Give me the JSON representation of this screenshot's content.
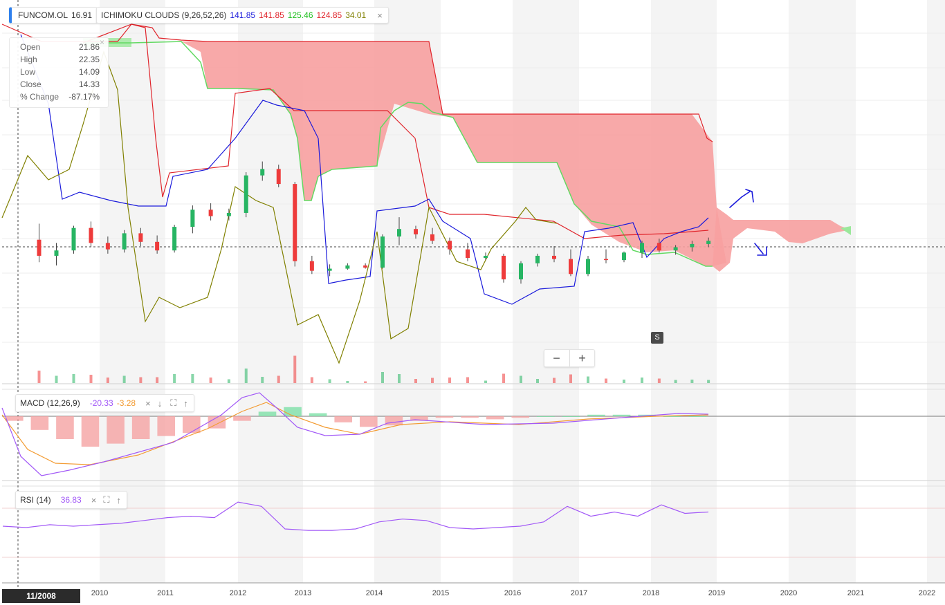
{
  "symbol": {
    "ticker": "FUNCOM.OL",
    "price": "16.91"
  },
  "ichimoku": {
    "label": "ICHIMOKU CLOUDS (9,26,52,26)",
    "values": [
      "141.85",
      "141.85",
      "125.46",
      "124.85",
      "34.01"
    ],
    "colors": [
      "#1a1adb",
      "#e0242b",
      "#22c022",
      "#e0242b",
      "#808000"
    ],
    "close_icon": "close-icon"
  },
  "ohlc": {
    "rows": [
      {
        "label": "Open",
        "value": "21.86"
      },
      {
        "label": "High",
        "value": "22.35"
      },
      {
        "label": "Low",
        "value": "14.09"
      },
      {
        "label": "Close",
        "value": "14.33"
      },
      {
        "label": "% Change",
        "value": "-87.17%"
      }
    ],
    "close_symbol": "×"
  },
  "macd": {
    "label": "MACD (12,26,9)",
    "value1": "-20.33",
    "value2": "-3.28",
    "value1_color": "#a259f7",
    "value2_color": "#f39c33"
  },
  "rsi": {
    "label": "RSI (14)",
    "value": "36.83",
    "value_color": "#a259f7"
  },
  "icons": {
    "close": "×",
    "down": "↓",
    "expand": "⛶",
    "up": "↑"
  },
  "zoom": {
    "out": "−",
    "in": "+"
  },
  "marker": "S",
  "cursor_date": "11/2008",
  "colors": {
    "up": "#27b563",
    "down": "#ee3b3b",
    "cloud_red": "#f7a0a0",
    "cloud_green": "#b8f2b8",
    "tenkan": "#1a1adb",
    "kijun": "#e0242b",
    "chikou": "#808000",
    "macd_line": "#a259f7",
    "signal_line": "#f39c33",
    "rsi_line": "#a259f7"
  },
  "chart_data": {
    "type": "candlestick",
    "x_axis": {
      "ticks": [
        "2010",
        "2011",
        "2012",
        "2013",
        "2014",
        "2015",
        "2016",
        "2017",
        "2018",
        "2019",
        "2020",
        "2021",
        "2022"
      ]
    },
    "price_series": {
      "start": "2009.0",
      "step": "quarter",
      "candles": [
        {
          "o": 17.5,
          "h": 19.0,
          "l": 15.4,
          "c": 16.0
        },
        {
          "o": 16.0,
          "h": 17.2,
          "l": 15.1,
          "c": 16.5
        },
        {
          "o": 16.5,
          "h": 18.8,
          "l": 16.2,
          "c": 18.6
        },
        {
          "o": 18.6,
          "h": 19.2,
          "l": 16.8,
          "c": 17.2
        },
        {
          "o": 17.2,
          "h": 17.8,
          "l": 16.2,
          "c": 16.6
        },
        {
          "o": 16.6,
          "h": 18.4,
          "l": 16.3,
          "c": 18.1
        },
        {
          "o": 18.1,
          "h": 18.6,
          "l": 16.9,
          "c": 17.3
        },
        {
          "o": 17.3,
          "h": 17.9,
          "l": 16.2,
          "c": 16.5
        },
        {
          "o": 16.5,
          "h": 18.9,
          "l": 16.3,
          "c": 18.7
        },
        {
          "o": 18.7,
          "h": 20.7,
          "l": 18.1,
          "c": 20.3
        },
        {
          "o": 20.3,
          "h": 20.9,
          "l": 19.3,
          "c": 19.7
        },
        {
          "o": 19.7,
          "h": 20.4,
          "l": 19.3,
          "c": 20.0
        },
        {
          "o": 20.0,
          "h": 23.8,
          "l": 19.6,
          "c": 23.5
        },
        {
          "o": 23.5,
          "h": 24.8,
          "l": 23.0,
          "c": 24.1
        },
        {
          "o": 24.1,
          "h": 24.5,
          "l": 22.4,
          "c": 22.7
        },
        {
          "o": 22.7,
          "h": 22.9,
          "l": 15.0,
          "c": 15.5
        },
        {
          "o": 15.5,
          "h": 16.0,
          "l": 14.3,
          "c": 14.6
        },
        {
          "o": 14.6,
          "h": 15.2,
          "l": 14.1,
          "c": 14.8
        },
        {
          "o": 14.8,
          "h": 15.3,
          "l": 14.7,
          "c": 15.1
        },
        {
          "o": 15.1,
          "h": 15.3,
          "l": 14.8,
          "c": 14.9
        },
        {
          "o": 14.9,
          "h": 18.0,
          "l": 14.8,
          "c": 17.8
        },
        {
          "o": 17.8,
          "h": 19.6,
          "l": 17.0,
          "c": 18.5
        },
        {
          "o": 18.5,
          "h": 18.8,
          "l": 17.6,
          "c": 18.0
        },
        {
          "o": 18.0,
          "h": 18.6,
          "l": 17.1,
          "c": 17.4
        },
        {
          "o": 17.4,
          "h": 17.7,
          "l": 16.1,
          "c": 16.6
        },
        {
          "o": 16.6,
          "h": 17.2,
          "l": 15.5,
          "c": 15.8
        },
        {
          "o": 15.8,
          "h": 16.3,
          "l": 15.6,
          "c": 16.0
        },
        {
          "o": 16.0,
          "h": 16.2,
          "l": 13.5,
          "c": 13.8
        },
        {
          "o": 13.8,
          "h": 15.5,
          "l": 13.4,
          "c": 15.3
        },
        {
          "o": 15.3,
          "h": 16.2,
          "l": 15.0,
          "c": 16.0
        },
        {
          "o": 16.0,
          "h": 16.9,
          "l": 15.4,
          "c": 15.7
        },
        {
          "o": 15.7,
          "h": 16.6,
          "l": 14.1,
          "c": 14.3
        },
        {
          "o": 14.3,
          "h": 16.0,
          "l": 14.1,
          "c": 15.7
        },
        {
          "o": 15.7,
          "h": 16.6,
          "l": 15.3,
          "c": 15.6
        },
        {
          "o": 15.6,
          "h": 16.4,
          "l": 15.4,
          "c": 16.3
        },
        {
          "o": 16.3,
          "h": 17.4,
          "l": 15.8,
          "c": 17.2
        },
        {
          "o": 17.2,
          "h": 17.6,
          "l": 16.3,
          "c": 16.5
        },
        {
          "o": 16.5,
          "h": 17.0,
          "l": 16.1,
          "c": 16.8
        },
        {
          "o": 16.8,
          "h": 17.4,
          "l": 16.4,
          "c": 17.1
        },
        {
          "o": 17.1,
          "h": 17.7,
          "l": 16.8,
          "c": 17.4
        }
      ]
    },
    "macd_series": {
      "macd": [
        -3,
        -9,
        -15,
        -20,
        -18,
        -15,
        -13,
        -11,
        -8,
        -3,
        3,
        6,
        2,
        -4,
        -7,
        -6,
        -3,
        -1,
        -1,
        -2,
        -1,
        0,
        0,
        1,
        1,
        1,
        0,
        0
      ]
    },
    "rsi_series": {
      "values": [
        41,
        40,
        42,
        41,
        42,
        43,
        45,
        47,
        48,
        47,
        58,
        55,
        39,
        38,
        38,
        39,
        44,
        46,
        45,
        40,
        39,
        40,
        41,
        44,
        55,
        48,
        51,
        48,
        56,
        50,
        51
      ]
    }
  }
}
